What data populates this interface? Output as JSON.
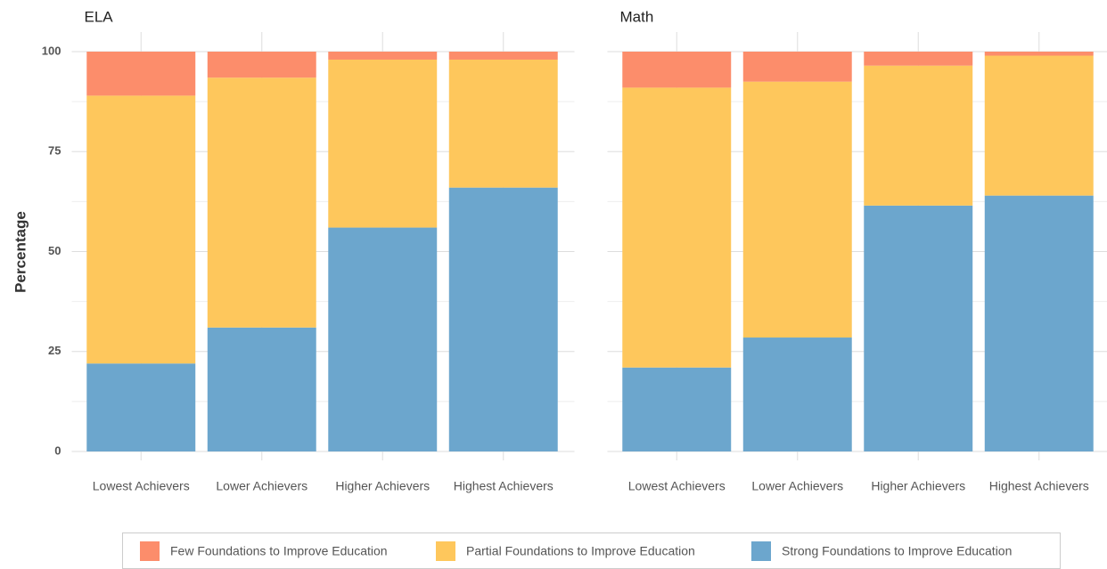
{
  "chart_data": {
    "type": "bar",
    "stacked": true,
    "y_label": "Percentage",
    "categories": [
      "Lowest Achievers",
      "Lower Achievers",
      "Higher Achievers",
      "Highest Achievers"
    ],
    "ylim": [
      0,
      100
    ],
    "yticks": [
      0,
      25,
      50,
      75,
      100
    ],
    "grid": true,
    "legend": "bottom",
    "series": [
      {
        "name": "Few Foundations to Improve Education",
        "color": "#fc8d6b"
      },
      {
        "name": "Partial Foundations to Improve Education",
        "color": "#fec75c"
      },
      {
        "name": "Strong Foundations to Improve Education",
        "color": "#6ca6cd"
      }
    ],
    "panels": [
      {
        "title": "ELA",
        "values": [
          [
            11,
            6.5,
            2,
            2
          ],
          [
            67,
            62.5,
            42,
            32
          ],
          [
            22,
            31,
            56,
            66
          ]
        ]
      },
      {
        "title": "Math",
        "values": [
          [
            9,
            7.5,
            3.5,
            1
          ],
          [
            70,
            64,
            35,
            35
          ],
          [
            21,
            28.5,
            61.5,
            64
          ]
        ]
      }
    ]
  }
}
